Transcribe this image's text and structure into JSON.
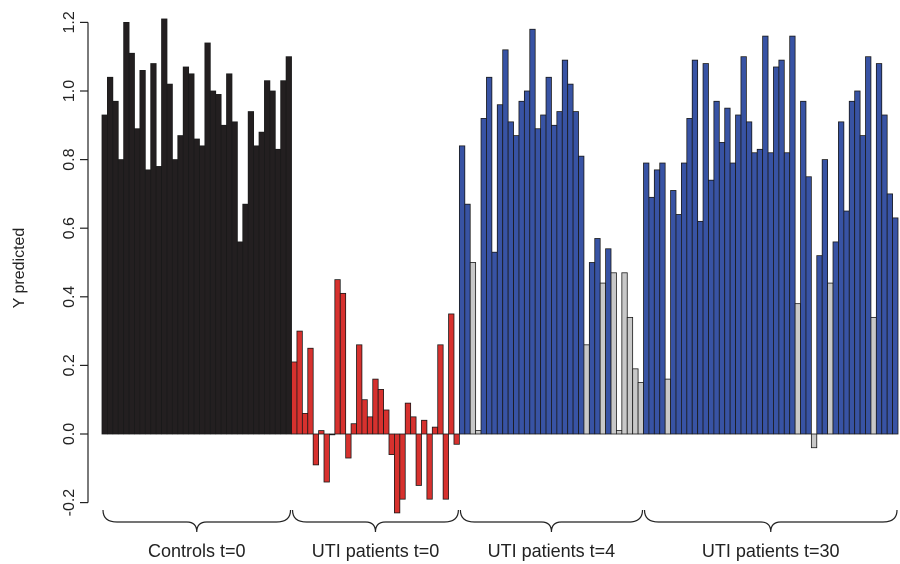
{
  "chart_data": {
    "type": "bar",
    "title": "",
    "xlabel": "",
    "ylabel": "Y predicted",
    "ylim": [
      -0.25,
      1.22
    ],
    "yticks": [
      -0.2,
      0.0,
      0.2,
      0.4,
      0.6,
      0.8,
      1.0,
      1.2
    ],
    "grid": false,
    "legend": "none",
    "colors": {
      "control": "#231f20",
      "red": "#d7312e",
      "blue": "#3853a4",
      "grey": "#c8c8c8",
      "axis": "#222222"
    },
    "groups": [
      {
        "label": "Controls t=0",
        "values": [
          0.93,
          1.04,
          0.97,
          0.8,
          1.2,
          1.11,
          0.89,
          1.06,
          0.77,
          1.08,
          0.78,
          1.21,
          1.02,
          0.8,
          0.87,
          1.07,
          1.05,
          0.86,
          0.84,
          1.14,
          1.0,
          0.99,
          0.9,
          1.05,
          0.91,
          0.56,
          0.67,
          0.94,
          0.84,
          0.88,
          1.03,
          1.0,
          0.83,
          1.03,
          1.1
        ],
        "colors": [
          "control"
        ]
      },
      {
        "label": "UTI patients t=0",
        "values": [
          0.21,
          0.3,
          0.06,
          0.25,
          -0.09,
          0.01,
          -0.14,
          0.0,
          0.45,
          0.41,
          -0.07,
          0.03,
          0.26,
          0.1,
          0.05,
          0.16,
          0.13,
          0.07,
          -0.06,
          -0.23,
          -0.19,
          0.09,
          0.05,
          -0.15,
          0.04,
          -0.19,
          0.02,
          0.26,
          -0.19,
          0.35,
          -0.03
        ],
        "colors": [
          "red"
        ]
      },
      {
        "label": "UTI patients t=4",
        "values": [
          0.84,
          0.67,
          0.5,
          0.01,
          0.92,
          1.04,
          0.53,
          0.96,
          1.12,
          0.91,
          0.87,
          0.97,
          1.0,
          1.18,
          0.89,
          0.93,
          1.04,
          0.9,
          0.94,
          1.09,
          1.02,
          0.94,
          0.81,
          0.26,
          0.5,
          0.57,
          0.44,
          0.54,
          0.47,
          0.01,
          0.47,
          0.34,
          0.19,
          0.15
        ],
        "colors": [
          "blue",
          "blue",
          "grey",
          "grey",
          "blue",
          "blue",
          "blue",
          "blue",
          "blue",
          "blue",
          "blue",
          "blue",
          "blue",
          "blue",
          "blue",
          "blue",
          "blue",
          "blue",
          "blue",
          "blue",
          "blue",
          "blue",
          "blue",
          "grey",
          "blue",
          "blue",
          "grey",
          "blue",
          "grey",
          "grey",
          "grey",
          "grey",
          "grey",
          "grey"
        ]
      },
      {
        "label": "UTI patients t=30",
        "values": [
          0.79,
          0.69,
          0.77,
          0.79,
          0.16,
          0.71,
          0.64,
          0.79,
          0.92,
          1.09,
          0.62,
          1.08,
          0.74,
          0.97,
          0.85,
          0.95,
          0.79,
          0.93,
          1.1,
          0.91,
          0.82,
          0.83,
          1.16,
          0.82,
          1.07,
          1.09,
          0.82,
          1.16,
          0.38,
          0.97,
          0.75,
          -0.04,
          0.52,
          0.8,
          0.44,
          0.56,
          0.91,
          0.65,
          0.97,
          1.0,
          0.87,
          1.1,
          0.34,
          1.08,
          0.93,
          0.7,
          0.63
        ],
        "colors": [
          "blue",
          "blue",
          "blue",
          "blue",
          "grey",
          "blue",
          "blue",
          "blue",
          "blue",
          "blue",
          "blue",
          "blue",
          "blue",
          "blue",
          "blue",
          "blue",
          "blue",
          "blue",
          "blue",
          "blue",
          "blue",
          "blue",
          "blue",
          "blue",
          "blue",
          "blue",
          "blue",
          "blue",
          "grey",
          "blue",
          "blue",
          "grey",
          "blue",
          "blue",
          "grey",
          "blue",
          "blue",
          "blue",
          "blue",
          "blue",
          "blue",
          "blue",
          "grey",
          "blue",
          "blue",
          "blue",
          "blue"
        ]
      }
    ]
  }
}
